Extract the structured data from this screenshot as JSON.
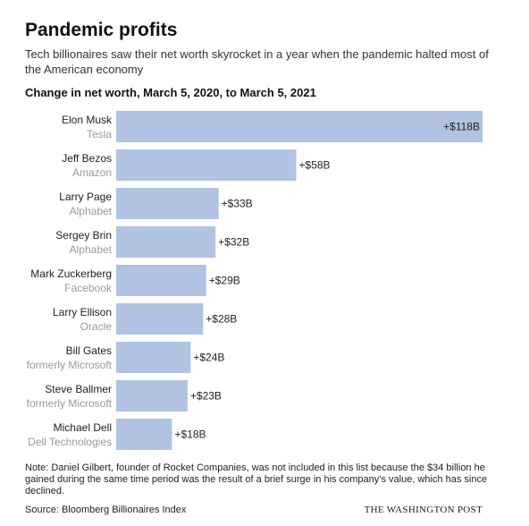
{
  "header": {
    "title": "Pandemic profits",
    "subtitle": "Tech billionaires saw their net worth skyrocket in a year when the pandemic halted most of the American economy",
    "chart_heading": "Change in net worth, March 5, 2020, to March 5, 2021"
  },
  "footer": {
    "note": "Note: Daniel Gilbert, founder of Rocket Companies, was not included in this list because the $34 billion he gained during the same time period was the result of a brief surge in his company’s value, which has since declined.",
    "source": "Source: Bloomberg Billionaires Index",
    "brand": "THE WASHINGTON POST"
  },
  "colors": {
    "bar": "#b1c2e2",
    "name_text": "#222222",
    "company_text": "#999999",
    "value_text": "#222222"
  },
  "chart_data": {
    "type": "bar",
    "orientation": "horizontal",
    "title": "Change in net worth, March 5, 2020, to March 5, 2021",
    "xlim": [
      0,
      118
    ],
    "grid": false,
    "categories": [
      "Elon Musk",
      "Jeff Bezos",
      "Larry Page",
      "Sergey Brin",
      "Mark Zuckerberg",
      "Larry Ellison",
      "Bill Gates",
      "Steve Ballmer",
      "Michael Dell"
    ],
    "subcategories": [
      "Tesla",
      "Amazon",
      "Alphabet",
      "Alphabet",
      "Facebook",
      "Oracle",
      "formerly Microsoft",
      "formerly Microsoft",
      "Dell Technologies"
    ],
    "values": [
      118,
      58,
      33,
      32,
      29,
      28,
      24,
      23,
      18
    ],
    "value_labels": [
      "+$118B",
      "+$58B",
      "+$33B",
      "+$32B",
      "+$29B",
      "+$28B",
      "+$24B",
      "+$23B",
      "+$18B"
    ]
  }
}
